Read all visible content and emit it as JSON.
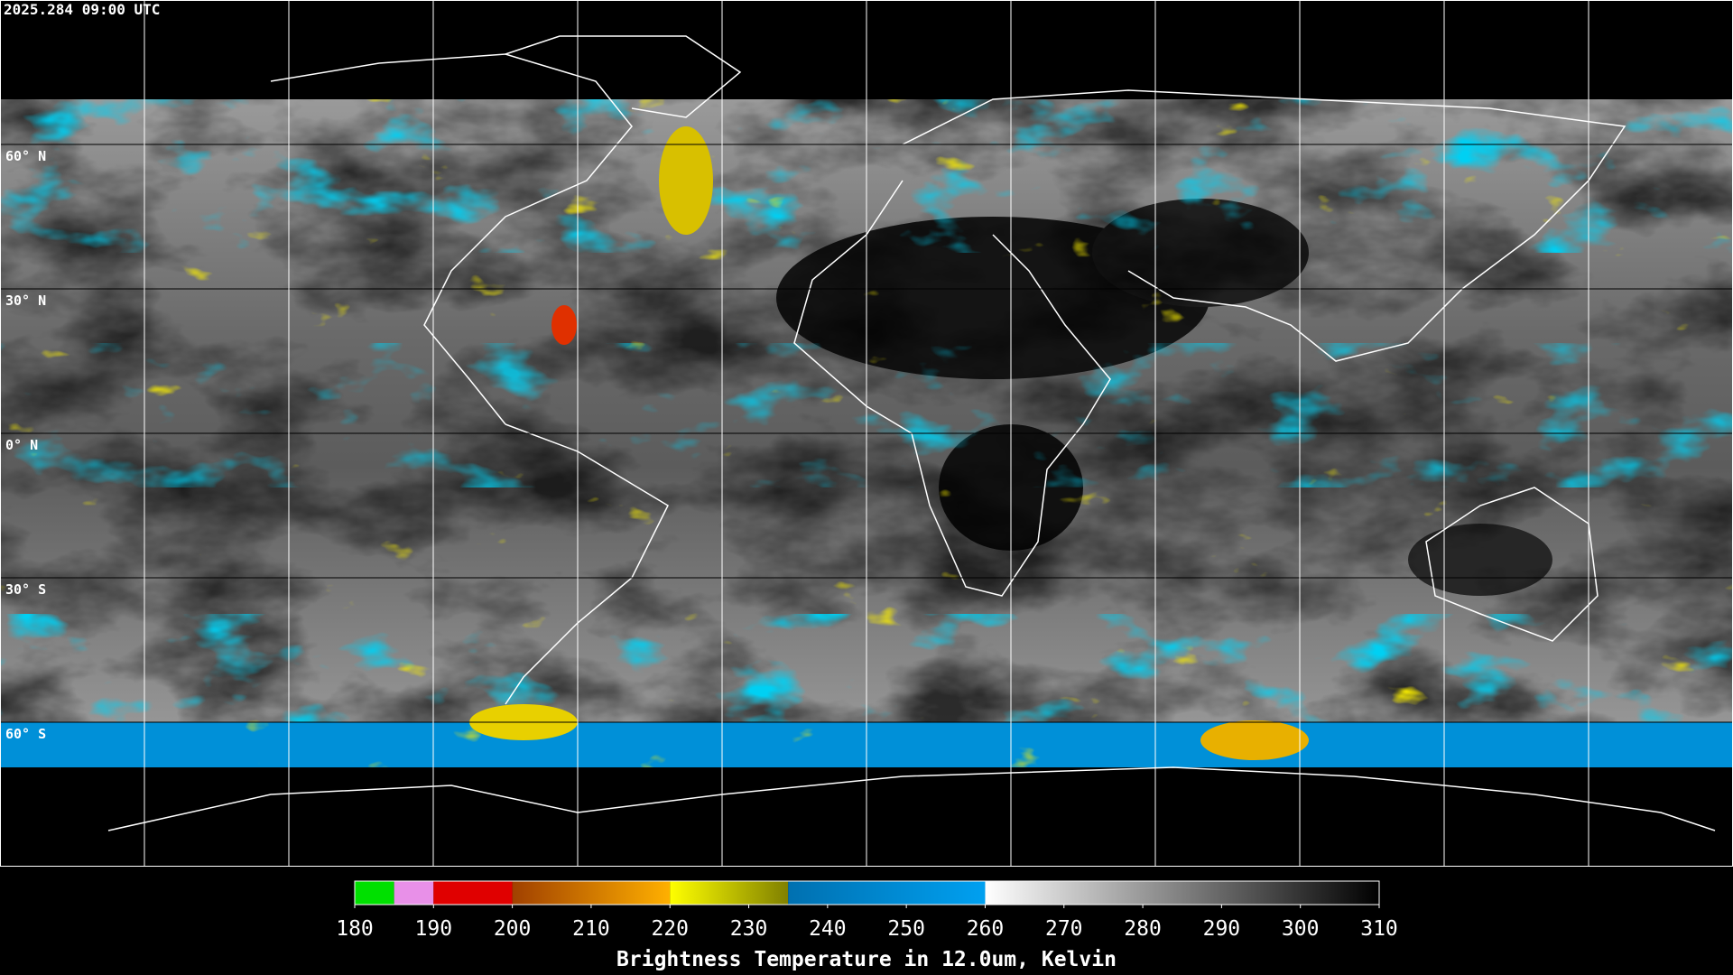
{
  "timestamp": "2025.284 09:00 UTC",
  "latitude_labels": [
    "60° N",
    "30° N",
    "0° N",
    "30° S",
    "60° S"
  ],
  "colorbar": {
    "title": "Brightness Temperature in 12.0um, Kelvin",
    "range": [
      180,
      310
    ],
    "ticks": [
      180,
      190,
      200,
      210,
      220,
      230,
      240,
      250,
      260,
      270,
      280,
      290,
      300,
      310
    ],
    "segments": [
      {
        "from": 180,
        "to": 185,
        "colors": [
          "#00e000",
          "#00e000"
        ]
      },
      {
        "from": 185,
        "to": 190,
        "colors": [
          "#e890e8",
          "#e890e8"
        ]
      },
      {
        "from": 190,
        "to": 200,
        "colors": [
          "#e00000",
          "#e00000"
        ]
      },
      {
        "from": 200,
        "to": 220,
        "colors": [
          "#a04000",
          "#ffb000"
        ]
      },
      {
        "from": 220,
        "to": 235,
        "colors": [
          "#ffff00",
          "#808000"
        ]
      },
      {
        "from": 235,
        "to": 260,
        "colors": [
          "#0070b0",
          "#00a0f0"
        ]
      },
      {
        "from": 260,
        "to": 310,
        "colors": [
          "#ffffff",
          "#000000"
        ]
      }
    ]
  }
}
